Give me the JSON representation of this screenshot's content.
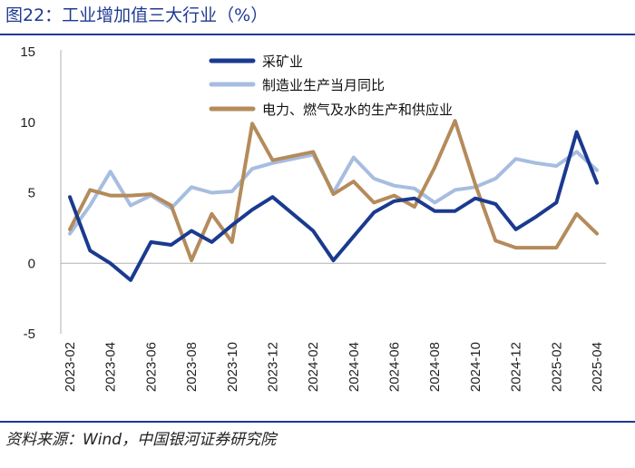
{
  "figure": {
    "title": "图22：工业增加值三大行业（%）",
    "source": "资料来源：Wind，中国银河证券研究院"
  },
  "chart_data": {
    "type": "line",
    "title": "工业增加值三大行业（%）",
    "xlabel": "",
    "ylabel": "",
    "ylim": [
      -5,
      15
    ],
    "yticks": [
      "15",
      "10",
      "5",
      "0",
      "-5"
    ],
    "grid": false,
    "legend_position": "top-right",
    "x": [
      "2023-02",
      "2023-03",
      "2023-04",
      "2023-05",
      "2023-06",
      "2023-07",
      "2023-08",
      "2023-09",
      "2023-10",
      "2023-11",
      "2023-12",
      "2024-01",
      "2024-02",
      "2024-03",
      "2024-04",
      "2024-05",
      "2024-06",
      "2024-07",
      "2024-08",
      "2024-09",
      "2024-10",
      "2024-11",
      "2024-12",
      "2025-01",
      "2025-02",
      "2025-03",
      "2025-04"
    ],
    "xtick_labels": [
      "2023-02",
      "2023-04",
      "2023-06",
      "2023-08",
      "2023-10",
      "2023-12",
      "2024-02",
      "2024-04",
      "2024-06",
      "2024-08",
      "2024-10",
      "2024-12",
      "2025-02",
      "2025-04"
    ],
    "series": [
      {
        "name": "采矿业",
        "color": "#1a3a8f",
        "values": [
          4.7,
          0.9,
          0.0,
          -1.2,
          1.5,
          1.3,
          2.3,
          1.5,
          2.7,
          3.8,
          4.7,
          3.5,
          2.3,
          0.2,
          1.9,
          3.6,
          4.4,
          4.6,
          3.7,
          3.7,
          4.6,
          4.2,
          2.4,
          3.3,
          4.3,
          9.3,
          5.7
        ]
      },
      {
        "name": "制造业生产当月同比",
        "color": "#a7bde0",
        "values": [
          2.1,
          4.1,
          6.5,
          4.1,
          4.8,
          3.9,
          5.4,
          5.0,
          5.1,
          6.7,
          7.1,
          7.4,
          7.7,
          5.0,
          7.5,
          6.0,
          5.5,
          5.3,
          4.3,
          5.2,
          5.4,
          6.0,
          7.4,
          7.1,
          6.9,
          7.9,
          6.6
        ]
      },
      {
        "name": "电力、燃气及水的生产和供应业",
        "color": "#b48b5b",
        "values": [
          2.4,
          5.2,
          4.8,
          4.8,
          4.9,
          4.1,
          0.2,
          3.5,
          1.5,
          9.9,
          7.3,
          7.6,
          7.9,
          4.9,
          5.8,
          4.3,
          4.8,
          4.0,
          6.8,
          10.1,
          5.6,
          1.6,
          1.1,
          1.1,
          1.1,
          3.5,
          2.1
        ]
      }
    ]
  }
}
